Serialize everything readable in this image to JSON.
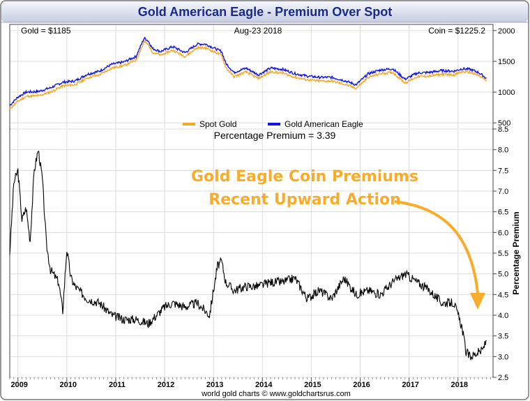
{
  "title": "Gold American Eagle - Premium Over Spot",
  "credit": "world gold charts © www.goldchartsrus.com",
  "colors": {
    "title_bg_top": "#f4f6fb",
    "title_bg_bottom": "#c7cde2",
    "title_text": "#1a2a8a",
    "spot_gold": "#f5a623",
    "eagle": "#1414e6",
    "premium_line": "#000000",
    "annotation": "#f7ad2b",
    "grid": "#d9d9d9"
  },
  "chart_data": [
    {
      "type": "line",
      "header_left": "Gold = $1185",
      "header_center": "Aug-23  2018",
      "header_right": "Coin = $1225.2",
      "y_ticks": [
        "500",
        "1000",
        "1500",
        "2000"
      ],
      "ylim": [
        400,
        2100
      ],
      "legend": "bottom-center",
      "grid": true,
      "series": [
        {
          "name": "Spot Gold",
          "x": [
            "2008-11",
            "2009-01",
            "2009-03",
            "2009-06",
            "2009-09",
            "2009-12",
            "2010-03",
            "2010-06",
            "2010-09",
            "2010-12",
            "2011-03",
            "2011-06",
            "2011-08",
            "2011-09",
            "2011-10",
            "2011-12",
            "2012-03",
            "2012-06",
            "2012-09",
            "2012-11",
            "2013-01",
            "2013-03",
            "2013-04",
            "2013-06",
            "2013-09",
            "2013-12",
            "2014-03",
            "2014-06",
            "2014-09",
            "2014-12",
            "2015-03",
            "2015-06",
            "2015-09",
            "2015-12",
            "2016-03",
            "2016-06",
            "2016-09",
            "2016-12",
            "2017-03",
            "2017-06",
            "2017-09",
            "2017-12",
            "2018-02",
            "2018-04",
            "2018-06",
            "2018-08"
          ],
          "values": [
            730,
            850,
            930,
            940,
            1000,
            1100,
            1120,
            1230,
            1280,
            1390,
            1430,
            1520,
            1820,
            1770,
            1650,
            1600,
            1680,
            1580,
            1720,
            1720,
            1660,
            1600,
            1400,
            1250,
            1330,
            1220,
            1330,
            1310,
            1240,
            1200,
            1180,
            1180,
            1130,
            1060,
            1240,
            1300,
            1320,
            1150,
            1250,
            1260,
            1290,
            1280,
            1330,
            1320,
            1270,
            1185
          ]
        },
        {
          "name": "Gold American Eagle",
          "x": [
            "2008-11",
            "2009-01",
            "2009-03",
            "2009-06",
            "2009-09",
            "2009-12",
            "2010-03",
            "2010-06",
            "2010-09",
            "2010-12",
            "2011-03",
            "2011-06",
            "2011-08",
            "2011-09",
            "2011-10",
            "2011-12",
            "2012-03",
            "2012-06",
            "2012-09",
            "2012-11",
            "2013-01",
            "2013-03",
            "2013-04",
            "2013-06",
            "2013-09",
            "2013-12",
            "2014-03",
            "2014-06",
            "2014-09",
            "2014-12",
            "2015-03",
            "2015-06",
            "2015-09",
            "2015-12",
            "2016-03",
            "2016-06",
            "2016-09",
            "2016-12",
            "2017-03",
            "2017-06",
            "2017-09",
            "2017-12",
            "2018-02",
            "2018-04",
            "2018-06",
            "2018-08"
          ],
          "values": [
            785,
            920,
            1000,
            1010,
            1070,
            1160,
            1180,
            1290,
            1340,
            1450,
            1490,
            1580,
            1880,
            1830,
            1710,
            1660,
            1740,
            1640,
            1780,
            1780,
            1720,
            1660,
            1470,
            1320,
            1390,
            1280,
            1390,
            1370,
            1300,
            1260,
            1240,
            1240,
            1190,
            1120,
            1300,
            1360,
            1380,
            1210,
            1310,
            1320,
            1350,
            1340,
            1380,
            1370,
            1320,
            1225
          ]
        }
      ]
    },
    {
      "type": "line",
      "title": "Percentage Premium = 3.39",
      "ylabel": "Percentage Premium",
      "ylim": [
        2.5,
        8.5
      ],
      "y_ticks": [
        "2.5",
        "3.0",
        "3.5",
        "4.0",
        "4.5",
        "5.0",
        "5.5",
        "6.0",
        "6.5",
        "7.0",
        "7.5",
        "8.0",
        "8.5"
      ],
      "x_ticks": [
        "2009",
        "2010",
        "2011",
        "2012",
        "2013",
        "2014",
        "2015",
        "2016",
        "2017",
        "2018"
      ],
      "grid": true,
      "annotation": [
        "Gold Eagle Coin Premiums",
        "Recent Upward Action"
      ],
      "series": [
        {
          "name": "Premium",
          "x": [
            "2008-11",
            "2008-12",
            "2009-01",
            "2009-02",
            "2009-03",
            "2009-04",
            "2009-05",
            "2009-06",
            "2009-07",
            "2009-08",
            "2009-09",
            "2009-11",
            "2009-12",
            "2010-01",
            "2010-02",
            "2010-03",
            "2010-06",
            "2010-09",
            "2010-12",
            "2011-03",
            "2011-06",
            "2011-09",
            "2011-12",
            "2012-01",
            "2012-03",
            "2012-06",
            "2012-09",
            "2012-12",
            "2013-01",
            "2013-02",
            "2013-03",
            "2013-04",
            "2013-06",
            "2013-09",
            "2013-12",
            "2014-03",
            "2014-06",
            "2014-09",
            "2014-12",
            "2015-03",
            "2015-06",
            "2015-09",
            "2015-12",
            "2016-03",
            "2016-06",
            "2016-09",
            "2016-12",
            "2017-03",
            "2017-06",
            "2017-09",
            "2017-12",
            "2018-01",
            "2018-02",
            "2018-03",
            "2018-04",
            "2018-05",
            "2018-06",
            "2018-07",
            "2018-08"
          ],
          "values": [
            5.5,
            7.2,
            7.5,
            6.3,
            6.6,
            5.8,
            7.5,
            8.0,
            7.3,
            5.7,
            5.1,
            4.8,
            4.1,
            5.6,
            4.9,
            4.7,
            4.4,
            4.3,
            4.0,
            3.9,
            3.9,
            3.8,
            4.1,
            4.2,
            4.3,
            4.2,
            4.3,
            4.0,
            4.6,
            5.2,
            5.3,
            4.8,
            4.6,
            4.7,
            4.7,
            4.8,
            4.8,
            4.9,
            4.4,
            4.6,
            4.4,
            4.9,
            4.5,
            4.6,
            4.5,
            4.8,
            5.0,
            4.8,
            4.6,
            4.3,
            4.3,
            4.0,
            3.7,
            3.1,
            3.0,
            3.05,
            3.1,
            3.15,
            3.39
          ]
        }
      ]
    }
  ]
}
